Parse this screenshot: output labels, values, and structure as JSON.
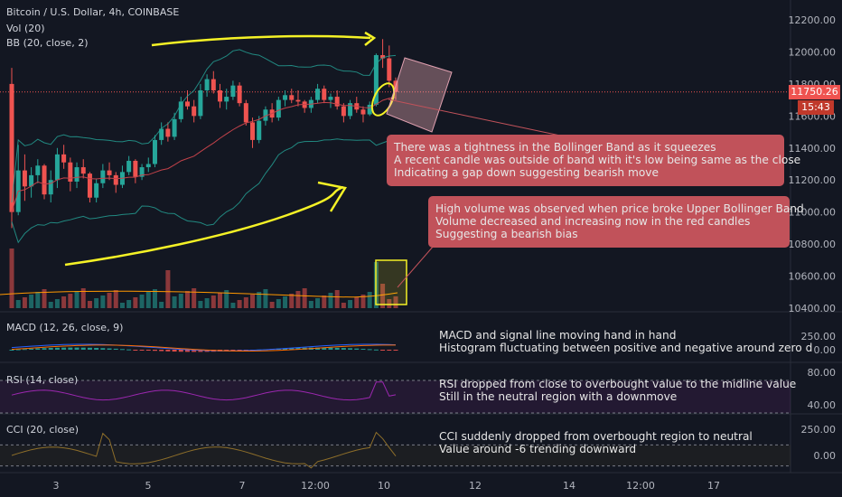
{
  "header": {
    "title": "Bitcoin / U.S. Dollar, 4h, COINBASE",
    "vol": "Vol (20)",
    "bb": "BB (20, close, 2)"
  },
  "price_tag": {
    "value": "11750.26",
    "time": "15:43"
  },
  "annotations": {
    "bb_box": [
      "There was a tightness in the Bollinger Band as it squeezes",
      "A recent candle was outside of band with it's low being same as the close",
      "Indicating a gap down suggesting bearish move"
    ],
    "vol_box": [
      "High volume was observed when price broke Upper Bollinger Band",
      "Volume decreased and increasing now in the red candles",
      "Suggesting a bearish bias"
    ],
    "macd": [
      "MACD and signal line moving hand in hand",
      "Histogram fluctuating between positive and negative around zero d"
    ],
    "rsi": [
      "RSI dropped from close to overbought value to the midline value",
      "Still in the neutral region with a downmove"
    ],
    "cci": [
      "CCI suddenly dropped from overbought region to neutral",
      "Value around -6 trending downward"
    ]
  },
  "panes": {
    "macd_label": "MACD (12, 26, close, 9)",
    "rsi_label": "RSI (14, close)",
    "cci_label": "CCI (20, close)"
  },
  "colors": {
    "background": "#131722",
    "up": "#26a69a",
    "down": "#ef5350",
    "bb_band": "#26a69a",
    "bb_basis": "#c2424a",
    "rsi": "#9c27b0",
    "cci": "#8d6e2a",
    "drawing_yellow": "#f5f226",
    "annotation_box": "#c1525a"
  },
  "chart_data": [
    {
      "type": "candlestick",
      "title": "Bitcoin / U.S. Dollar, 4h, COINBASE",
      "yticks": [
        "12200.00",
        "12000.00",
        "11800.00",
        "11600.00",
        "11400.00",
        "11200.00",
        "11000.00",
        "10800.00",
        "10600.00",
        "10400.00"
      ],
      "xticks": [
        "3",
        "5",
        "7",
        "12:00",
        "10",
        "12",
        "14",
        "12:00",
        "17"
      ],
      "ylim": [
        10400,
        12200
      ],
      "last_price": 11750.26,
      "ohlc_approx": [
        [
          11800,
          11900,
          10900,
          11000
        ],
        [
          11000,
          11420,
          10980,
          11260
        ],
        [
          11260,
          11360,
          11070,
          11160
        ],
        [
          11160,
          11280,
          11090,
          11230
        ],
        [
          11230,
          11330,
          11180,
          11290
        ],
        [
          11290,
          11300,
          11080,
          11110
        ],
        [
          11110,
          11260,
          11060,
          11200
        ],
        [
          11200,
          11400,
          11150,
          11360
        ],
        [
          11360,
          11420,
          11270,
          11310
        ],
        [
          11310,
          11340,
          11130,
          11190
        ],
        [
          11190,
          11310,
          11150,
          11280
        ],
        [
          11280,
          11330,
          11210,
          11240
        ],
        [
          11240,
          11250,
          11060,
          11090
        ],
        [
          11090,
          11210,
          11060,
          11180
        ],
        [
          11180,
          11300,
          11150,
          11260
        ],
        [
          11260,
          11310,
          11200,
          11230
        ],
        [
          11230,
          11250,
          11120,
          11170
        ],
        [
          11170,
          11290,
          11150,
          11250
        ],
        [
          11250,
          11350,
          11230,
          11320
        ],
        [
          11320,
          11330,
          11180,
          11220
        ],
        [
          11220,
          11300,
          11200,
          11280
        ],
        [
          11280,
          11340,
          11250,
          11300
        ],
        [
          11300,
          11480,
          11280,
          11450
        ],
        [
          11450,
          11560,
          11420,
          11520
        ],
        [
          11520,
          11560,
          11440,
          11470
        ],
        [
          11470,
          11620,
          11450,
          11580
        ],
        [
          11580,
          11720,
          11560,
          11690
        ],
        [
          11690,
          11760,
          11640,
          11660
        ],
        [
          11660,
          11700,
          11560,
          11600
        ],
        [
          11600,
          11800,
          11580,
          11760
        ],
        [
          11760,
          11860,
          11720,
          11830
        ],
        [
          11830,
          11880,
          11740,
          11760
        ],
        [
          11760,
          11800,
          11650,
          11690
        ],
        [
          11690,
          11770,
          11640,
          11720
        ],
        [
          11720,
          11820,
          11700,
          11790
        ],
        [
          11790,
          11810,
          11660,
          11680
        ],
        [
          11680,
          11700,
          11540,
          11560
        ],
        [
          11560,
          11590,
          11400,
          11450
        ],
        [
          11450,
          11600,
          11430,
          11570
        ],
        [
          11570,
          11660,
          11540,
          11640
        ],
        [
          11640,
          11680,
          11560,
          11590
        ],
        [
          11590,
          11720,
          11570,
          11700
        ],
        [
          11700,
          11760,
          11660,
          11730
        ],
        [
          11730,
          11770,
          11680,
          11700
        ],
        [
          11700,
          11760,
          11660,
          11690
        ],
        [
          11690,
          11700,
          11620,
          11650
        ],
        [
          11650,
          11720,
          11620,
          11700
        ],
        [
          11700,
          11800,
          11680,
          11770
        ],
        [
          11770,
          11790,
          11680,
          11700
        ],
        [
          11700,
          11740,
          11650,
          11720
        ],
        [
          11720,
          11760,
          11640,
          11660
        ],
        [
          11660,
          11680,
          11560,
          11600
        ],
        [
          11600,
          11700,
          11580,
          11680
        ],
        [
          11680,
          11720,
          11620,
          11640
        ],
        [
          11640,
          11660,
          11560,
          11610
        ],
        [
          11610,
          11690,
          11600,
          11670
        ],
        [
          11670,
          11990,
          11660,
          11980
        ],
        [
          11980,
          12080,
          11900,
          11960
        ],
        [
          11960,
          12040,
          11780,
          11820
        ],
        [
          11820,
          11840,
          11700,
          11750
        ]
      ]
    },
    {
      "type": "line",
      "title": "MACD (12, 26, close, 9)",
      "yticks": [
        "250.00",
        "0.00"
      ]
    },
    {
      "type": "line",
      "title": "RSI (14, close)",
      "yticks": [
        "80.00",
        "40.00"
      ]
    },
    {
      "type": "line",
      "title": "CCI (20, close)",
      "yticks": [
        "250.00",
        "0.00"
      ]
    }
  ]
}
